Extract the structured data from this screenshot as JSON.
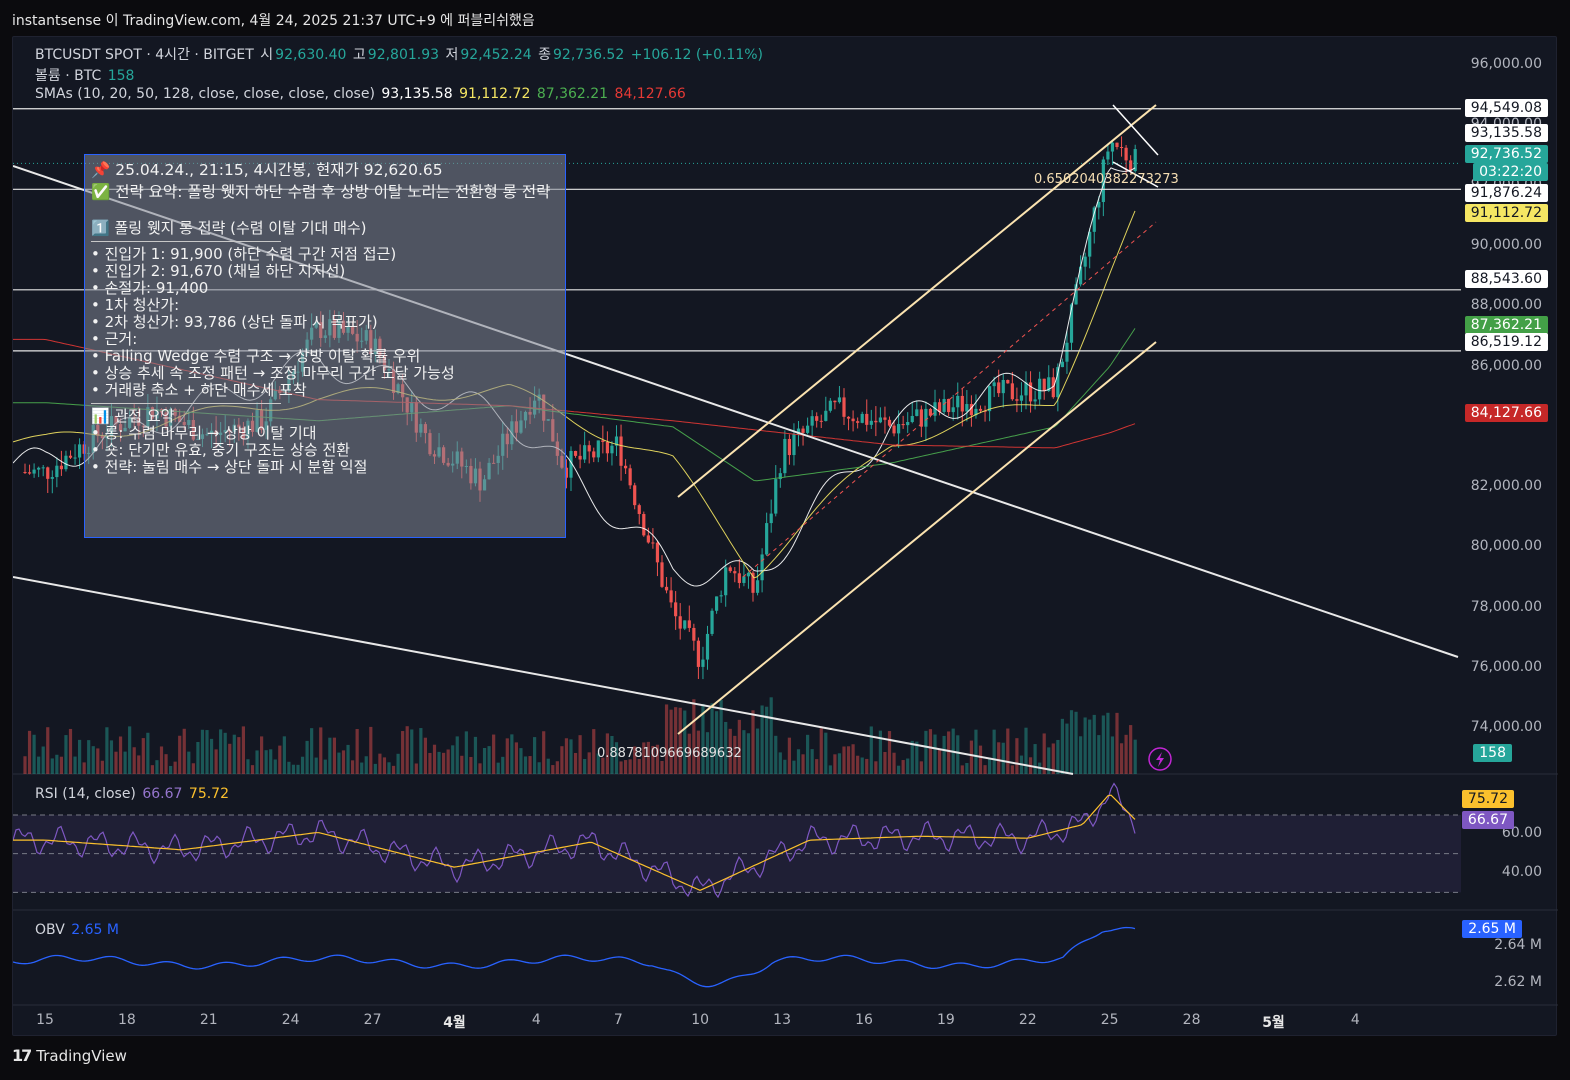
{
  "header": {
    "publish_line": "instantsense 이 TradingView.com, 4월 24, 2025 21:37 UTC+9 에 퍼블리쉬했음"
  },
  "legend": {
    "symbol": "BTCUSDT SPOT · 4시간 · BITGET",
    "open_label": "시",
    "open": "92,630.40",
    "high_label": "고",
    "high": "92,801.93",
    "low_label": "저",
    "low": "92,452.24",
    "close_label": "종",
    "close": "92,736.52",
    "change": "+106.12 (+0.11%)",
    "volume_label": "볼륨 · BTC",
    "volume": "158",
    "sma_label": "SMAs (10, 20, 50, 128, close, close, close, close)",
    "sma10": "93,135.58",
    "sma20": "91,112.72",
    "sma50": "87,362.21",
    "sma128": "84,127.66",
    "rsi_label": "RSI (14, close)",
    "rsi": "66.67",
    "rsi_ma": "75.72",
    "obv_label": "OBV",
    "obv": "2.65 M"
  },
  "colors": {
    "sma10": "#ffffff",
    "sma20": "#f5e663",
    "sma50": "#4caf50",
    "sma128": "#e53935",
    "up": "#26a69a",
    "down": "#ef5350",
    "rsi": "#7e57c2",
    "rsi_ma": "#fbc02d",
    "obv": "#2962ff",
    "channel": "#fbe3b0"
  },
  "note": {
    "lines": [
      "📌 25.04.24., 21:15, 4시간봉, 현재가 92,620.65",
      "✅ 전략 요약: 폴링 웻지 하단 수렴 후 상방 이탈 노리는 전환형 롱 전략",
      "",
      "1️⃣ 폴링 웻지 롱 전략 (수렴 이탈 기대 매수)",
      "—",
      "• 진입가 1: 91,900 (하단 수렴 구간 저점 접근)",
      "• 진입가 2: 91,670 (채널 하단 지지선)",
      "• 손절가: 91,400",
      "• 1차 청산가: ",
      "• 2차 청산가: 93,786 (상단 돌파 시 목표가)",
      "• 근거:",
      "• Falling Wedge 수렴 구조 → 상방 이탈 확률 우위",
      "• 상승 추세 속 조정 패턴 → 조정 마무리 구간 도달 가능성",
      "• 거래량 축소 + 하단 매수세 포착",
      "—",
      "📊 관점 요약",
      "• 롱: 수렴 마무리 → 상방 이탈 기대",
      "• 숏: 단기만 유효, 중기 구조는 상승 전환",
      "• 전략: 눌림 매수 → 상단 돌파 시 분할 익절"
    ]
  },
  "annotations": {
    "fib_top": "0.6502040382273273",
    "fib_bottom": "0.8878109669689632"
  },
  "price_axis": {
    "ticks": [
      "96,000.00",
      "94,000.00",
      "92,000.00",
      "90,000.00",
      "88,000.00",
      "86,000.00",
      "82,000.00",
      "80,000.00",
      "78,000.00",
      "76,000.00",
      "74,000.00"
    ],
    "badges": [
      {
        "text": "94,549.08",
        "kind": "line"
      },
      {
        "text": "93,135.58",
        "kind": "line"
      },
      {
        "text": "92,736.52",
        "kind": "current"
      },
      {
        "text": "03:22:20",
        "kind": "current"
      },
      {
        "text": "91,876.24",
        "kind": "line"
      },
      {
        "text": "91,112.72",
        "kind": "sma20"
      },
      {
        "text": "88,543.60",
        "kind": "line"
      },
      {
        "text": "87,362.21",
        "kind": "sma50"
      },
      {
        "text": "86,519.12",
        "kind": "line"
      },
      {
        "text": "84,127.66",
        "kind": "sma128"
      },
      {
        "text": "158",
        "kind": "volume"
      }
    ]
  },
  "rsi_axis": {
    "ticks": [
      "60.00",
      "40.00"
    ],
    "badges": [
      "75.72",
      "66.67"
    ]
  },
  "obv_axis": {
    "ticks": [
      "2.64 M",
      "2.62 M"
    ],
    "badge": "2.65 M"
  },
  "x_axis": {
    "labels": [
      "15",
      "18",
      "21",
      "24",
      "27",
      "4월",
      "4",
      "7",
      "10",
      "13",
      "16",
      "19",
      "22",
      "25",
      "28",
      "5월",
      "4"
    ]
  },
  "footer": {
    "brand": "TradingView",
    "logo": "17"
  },
  "chart_data": {
    "type": "line",
    "title": "",
    "symbol": "BTCUSDT SPOT · 4시간 · BITGET",
    "x_start": "2025-03-15",
    "x_end": "2025-05-04",
    "xlabel": "",
    "ylabel": "",
    "ylim": [
      72400,
      96600
    ],
    "horizontal_levels": [
      94549.08,
      91876.24,
      88543.6,
      86519.12
    ],
    "series": [
      {
        "name": "close",
        "x": [
          "03-15",
          "03-17",
          "03-19",
          "03-21",
          "03-23",
          "03-25",
          "03-27",
          "03-29",
          "03-31",
          "04-02",
          "04-03",
          "04-05",
          "04-07",
          "04-08",
          "04-09",
          "04-10",
          "04-11",
          "04-13",
          "04-15",
          "04-17",
          "04-19",
          "04-21",
          "04-22",
          "04-23",
          "04-24"
        ],
        "values": [
          82500,
          83800,
          84600,
          83700,
          84200,
          87300,
          86800,
          83600,
          82200,
          85200,
          82700,
          83400,
          77800,
          76300,
          79500,
          78500,
          83200,
          84600,
          84000,
          84600,
          85100,
          85300,
          89200,
          93500,
          92736.52
        ]
      },
      {
        "name": "SMA 10",
        "x": [
          "03-15",
          "03-25",
          "04-01",
          "04-07",
          "04-10",
          "04-15",
          "04-21",
          "04-23",
          "04-24"
        ],
        "values": [
          82800,
          86200,
          84300,
          79300,
          79000,
          84100,
          85800,
          92500,
          93135.58
        ]
      },
      {
        "name": "SMA 20",
        "x": [
          "03-15",
          "03-25",
          "04-01",
          "04-07",
          "04-10",
          "04-15",
          "04-21",
          "04-23",
          "04-24"
        ],
        "values": [
          83500,
          85000,
          85200,
          82800,
          79200,
          83500,
          84900,
          89100,
          91112.72
        ]
      },
      {
        "name": "SMA 50",
        "x": [
          "03-15",
          "03-25",
          "04-01",
          "04-07",
          "04-10",
          "04-15",
          "04-21",
          "04-23",
          "04-24"
        ],
        "values": [
          84800,
          84200,
          84700,
          84000,
          82200,
          82800,
          84000,
          86000,
          87362.21
        ]
      },
      {
        "name": "SMA 128",
        "x": [
          "03-15",
          "03-25",
          "04-01",
          "04-07",
          "04-10",
          "04-15",
          "04-21",
          "04-23",
          "04-24"
        ],
        "values": [
          86900,
          84900,
          84700,
          84200,
          83900,
          83400,
          83300,
          83800,
          84127.66
        ]
      }
    ],
    "rsi": {
      "x": [
        "03-15",
        "03-20",
        "03-25",
        "03-30",
        "04-04",
        "04-08",
        "04-12",
        "04-16",
        "04-20",
        "04-22",
        "04-23",
        "04-24"
      ],
      "values": [
        57,
        52,
        61,
        43,
        56,
        31,
        57,
        59,
        58,
        65,
        81,
        66.67
      ],
      "ma": 75.72,
      "levels": [
        70,
        50,
        30
      ]
    },
    "obv": {
      "last": 2.65
    }
  }
}
